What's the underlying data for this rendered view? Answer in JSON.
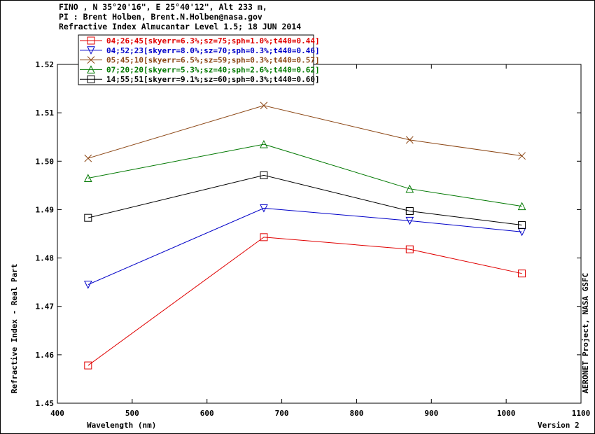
{
  "header": {
    "line1": "FINO , N 35°20'16\", E 25°40'12\", Alt 233 m,",
    "line2": "PI : Brent Holben, Brent.N.Holben@nasa.gov",
    "line3": "Refractive Index Almucantar Level 1.5; 18 JUN 2014"
  },
  "side_label": "AERONET Project, NASA GSFC",
  "version_label": "Version 2",
  "chart_data": {
    "type": "line",
    "xlabel": "Wavelength (nm)",
    "ylabel": "Refractive Index - Real Part",
    "xlim": [
      400,
      1100
    ],
    "ylim": [
      1.45,
      1.52
    ],
    "x_ticks": [
      "400",
      "500",
      "600",
      "700",
      "800",
      "900",
      "1000",
      "1100"
    ],
    "y_ticks": [
      "1.45",
      "1.46",
      "1.47",
      "1.48",
      "1.49",
      "1.50",
      "1.51",
      "1.52"
    ],
    "legend_position": "top-left",
    "series": [
      {
        "name": "04;26;45[skyerr=6.3%;sz=75;sph=1.0%;t440=0.44]",
        "color": "#e00000",
        "marker": "square",
        "x": [
          441,
          676,
          871,
          1021
        ],
        "y": [
          1.4578,
          1.4843,
          1.4818,
          1.4768
        ]
      },
      {
        "name": "04;52;23[skyerr=8.0%;sz=70;sph=0.3%;t440=0.46]",
        "color": "#0000c8",
        "marker": "triangle-down",
        "x": [
          441,
          676,
          871,
          1021
        ],
        "y": [
          1.4745,
          1.4903,
          1.4877,
          1.4854
        ]
      },
      {
        "name": "05;45;10[skyerr=6.5%;sz=59;sph=0.3%;t440=0.57]",
        "color": "#8b4513",
        "marker": "x",
        "x": [
          441,
          676,
          871,
          1021
        ],
        "y": [
          1.5006,
          1.5115,
          1.5044,
          1.5011
        ]
      },
      {
        "name": "07;20;20[skyerr=5.3%;sz=40;sph=2.6%;t440=0.62]",
        "color": "#007800",
        "marker": "triangle-up",
        "x": [
          441,
          676,
          871,
          1021
        ],
        "y": [
          1.4965,
          1.5035,
          1.4943,
          1.4907
        ]
      },
      {
        "name": "14;55;51[skyerr=9.1%;sz=60;sph=0.3%;t440=0.60]",
        "color": "#000000",
        "marker": "square",
        "x": [
          441,
          676,
          871,
          1021
        ],
        "y": [
          1.4883,
          1.4971,
          1.4897,
          1.4868
        ]
      }
    ]
  }
}
